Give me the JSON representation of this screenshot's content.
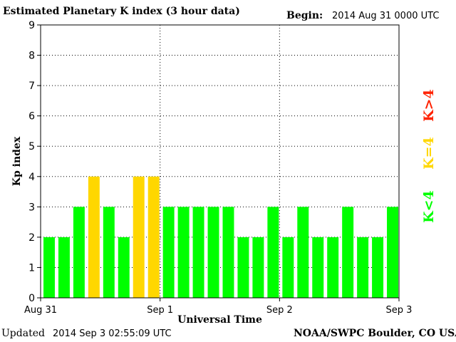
{
  "header": {
    "title": "Estimated Planetary K index (3 hour data)",
    "begin_label": "Begin:",
    "begin_value": "2014 Aug 31 0000 UTC"
  },
  "footer": {
    "updated_label": "Updated",
    "updated_value": "2014 Sep  3 02:55:09 UTC",
    "credit": "NOAA/SWPC Boulder, CO USA"
  },
  "legend": [
    {
      "label": "K<4",
      "color": "#00ff00"
    },
    {
      "label": "K=4",
      "color": "#ffd700"
    },
    {
      "label": "K>4",
      "color": "#ff2200"
    }
  ],
  "colors": {
    "low": "#00ff00",
    "equal": "#ffd700",
    "high": "#ff2200",
    "grid": "#000000"
  },
  "chart_data": {
    "type": "bar",
    "title": "Estimated Planetary K index (3 hour data)",
    "xlabel": "Universal Time",
    "ylabel": "Kp index",
    "ylim": [
      0,
      9
    ],
    "yticks": [
      0,
      1,
      2,
      3,
      4,
      5,
      6,
      7,
      8,
      9
    ],
    "xtick_labels": [
      "Aug 31",
      "Sep 1",
      "Sep 2",
      "Sep 3"
    ],
    "grid": true,
    "bins_per_day": 8,
    "values": [
      2,
      2,
      3,
      4,
      3,
      2,
      4,
      4,
      3,
      3,
      3,
      3,
      3,
      2,
      2,
      3,
      2,
      3,
      2,
      2,
      3,
      2,
      2,
      3
    ]
  }
}
